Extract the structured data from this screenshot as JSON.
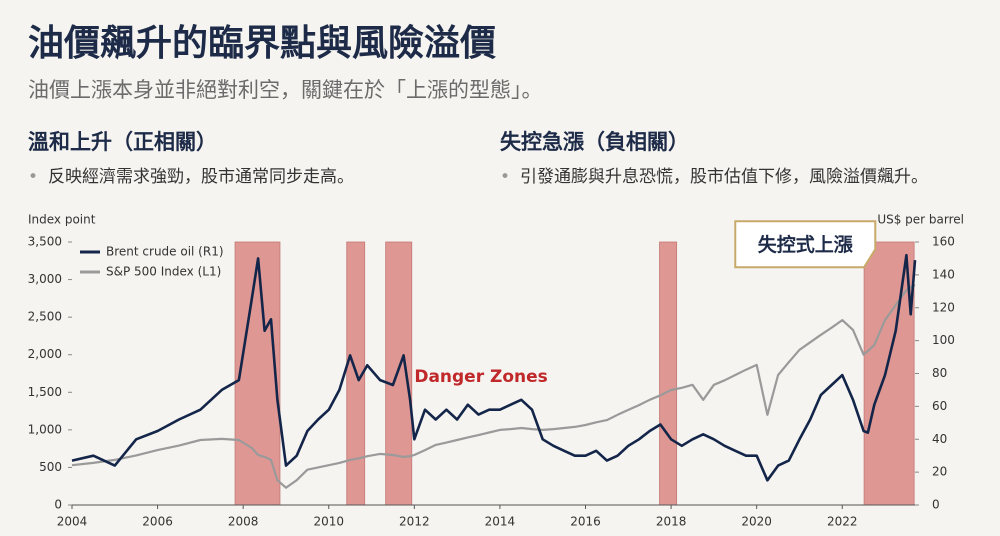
{
  "header": {
    "title": "油價飆升的臨界點與風險溢價",
    "subtitle": "油價上漲本身並非絕對利空，關鍵在於「上漲的型態」。"
  },
  "columns": [
    {
      "heading": "溫和上升（正相關）",
      "bullet": "反映經濟需求強勁，股市通常同步走高。"
    },
    {
      "heading": "失控急漲（負相關）",
      "bullet": "引發通膨與升息恐慌，股市估值下修，風險溢價飆升。"
    }
  ],
  "chart_data": {
    "type": "line",
    "ylabel": "Index point",
    "y2label": "US$ per barrel",
    "x": [
      2004,
      2004.5,
      2005,
      2005.5,
      2006,
      2006.5,
      2007,
      2007.5,
      2007.9,
      2008.2,
      2008.35,
      2008.5,
      2008.65,
      2008.8,
      2009,
      2009.25,
      2009.5,
      2009.75,
      2010,
      2010.25,
      2010.5,
      2010.7,
      2010.9,
      2011.2,
      2011.5,
      2011.75,
      2011.9,
      2012,
      2012.25,
      2012.5,
      2012.75,
      2013,
      2013.25,
      2013.5,
      2013.75,
      2014,
      2014.25,
      2014.5,
      2014.75,
      2015,
      2015.25,
      2015.5,
      2015.75,
      2016,
      2016.25,
      2016.5,
      2016.75,
      2017,
      2017.25,
      2017.5,
      2017.75,
      2018,
      2018.25,
      2018.5,
      2018.75,
      2019,
      2019.25,
      2019.5,
      2019.75,
      2020,
      2020.25,
      2020.5,
      2020.75,
      2021,
      2021.25,
      2021.5,
      2021.75,
      2022,
      2022.25,
      2022.5,
      2022.6,
      2022.75,
      2023,
      2023.25,
      2023.5,
      2023.6,
      2023.7
    ],
    "series": [
      {
        "name": "Brent crude oil (R1)",
        "color": "#14254a",
        "axis": "y2",
        "values": [
          27,
          30,
          24,
          40,
          45,
          52,
          58,
          70,
          76,
          125,
          150,
          106,
          113,
          64,
          24,
          30,
          45,
          52,
          58,
          70,
          91,
          76,
          85,
          76,
          73,
          91,
          64,
          40,
          58,
          52,
          58,
          52,
          61,
          55,
          58,
          58,
          61,
          64,
          58,
          40,
          36,
          33,
          30,
          30,
          33,
          27,
          30,
          36,
          40,
          45,
          49,
          40,
          36,
          40,
          43,
          40,
          36,
          33,
          30,
          30,
          15,
          24,
          27,
          40,
          52,
          67,
          73,
          79,
          64,
          45,
          44,
          61,
          79,
          106,
          152,
          116,
          149
        ]
      },
      {
        "name": "S&P 500 Index (L1)",
        "color": "#9a9a9a",
        "values": [
          530,
          560,
          600,
          660,
          730,
          790,
          865,
          880,
          865,
          760,
          665,
          640,
          600,
          330,
          230,
          330,
          470,
          500,
          530,
          560,
          600,
          620,
          650,
          680,
          665,
          640,
          650,
          665,
          730,
          800,
          830,
          865,
          900,
          930,
          965,
          1000,
          1010,
          1025,
          1010,
          1000,
          1010,
          1025,
          1040,
          1065,
          1100,
          1130,
          1200,
          1265,
          1330,
          1400,
          1460,
          1530,
          1560,
          1600,
          1400,
          1600,
          1660,
          1730,
          1800,
          1865,
          1200,
          1730,
          1900,
          2065,
          2165,
          2265,
          2360,
          2460,
          2330,
          2000,
          2050,
          2130,
          2460,
          2660,
          2860,
          2900,
          2930
        ]
      }
    ],
    "xlim": [
      2004,
      2023.7
    ],
    "xticks": [
      2004,
      2006,
      2008,
      2010,
      2012,
      2014,
      2016,
      2018,
      2020,
      2022
    ],
    "ylim": [
      0,
      3500
    ],
    "yticks": [
      0,
      500,
      {
        "value": 1000,
        "label": "1,000"
      },
      {
        "value": 1500,
        "label": "1,500"
      },
      {
        "value": 2000,
        "label": "2,000"
      },
      {
        "value": 2500,
        "label": "2,500"
      },
      {
        "value": 3000,
        "label": "3,000"
      },
      {
        "value": 3500,
        "label": "3,500"
      }
    ],
    "y2lim": [
      0,
      160
    ],
    "y2ticks": [
      0,
      20,
      40,
      60,
      80,
      100,
      120,
      140,
      160
    ],
    "grid": false,
    "legend": "upper left",
    "shaded_ranges": [
      [
        2007.81,
        2008.86
      ],
      [
        2010.42,
        2010.84
      ],
      [
        2011.33,
        2011.94
      ],
      [
        2017.73,
        2018.13
      ],
      [
        2022.51,
        2023.68
      ]
    ],
    "shade_color": "#d9807c",
    "annotations": [
      {
        "text": "Danger Zones",
        "x": 2012,
        "y2": 78,
        "color": "#c0282a"
      },
      {
        "text": "失控式上漲",
        "x": 2019.5,
        "y2": 158
      }
    ]
  }
}
